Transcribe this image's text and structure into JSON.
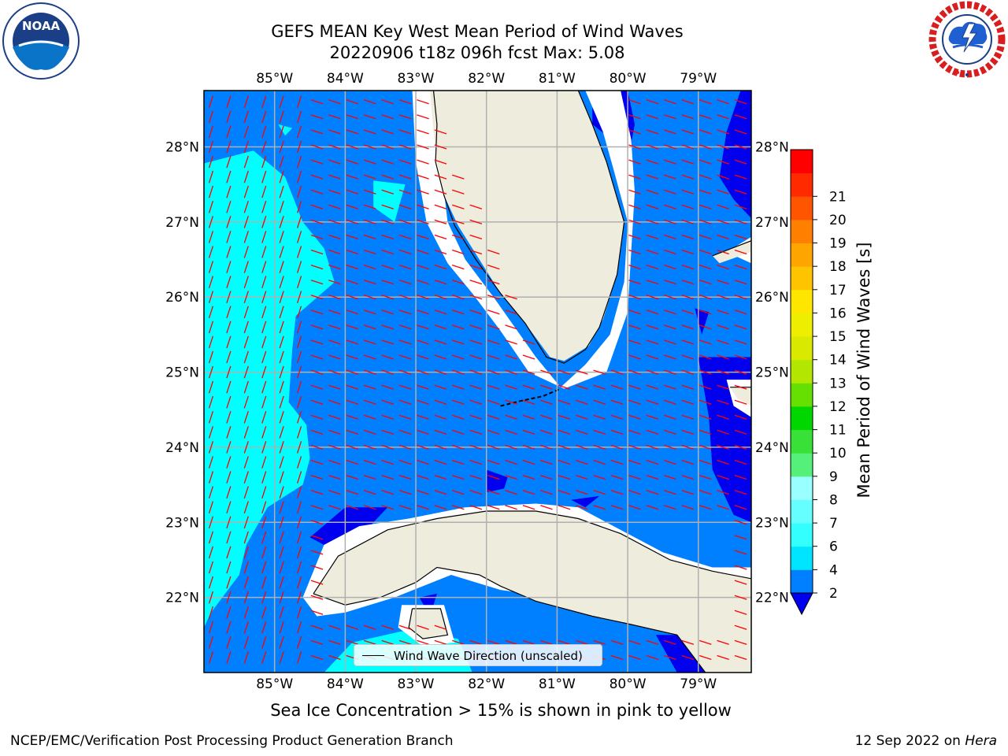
{
  "header": {
    "title_line1": "GEFS MEAN Key West Mean Period of Wind Waves",
    "title_line2": "20220906 t18z 096h fcst   Max: 5.08"
  },
  "logos": {
    "left": {
      "name": "NOAA",
      "text": "NOAA",
      "ring_text": "NATIONAL OCEANIC AND ATMOSPHERIC ADMINISTRATION · U.S. DEPARTMENT OF COMMERCE"
    },
    "right": {
      "name": "National Weather Service",
      "ring_text": "NATIONAL WEATHER SERVICE"
    }
  },
  "chart_data": {
    "type": "heatmap",
    "title": "GEFS MEAN Key West Mean Period of Wind Waves",
    "subtitle": "20220906 t18z 096h fcst   Max: 5.08",
    "map_extent": {
      "lon": [
        -86.0,
        -78.25
      ],
      "lat": [
        21.0,
        28.75
      ]
    },
    "x_ticks": [
      "85°W",
      "84°W",
      "83°W",
      "82°W",
      "81°W",
      "80°W",
      "79°W"
    ],
    "x_tick_values": [
      -85,
      -84,
      -83,
      -82,
      -81,
      -80,
      -79
    ],
    "y_ticks": [
      "22°N",
      "23°N",
      "24°N",
      "25°N",
      "26°N",
      "27°N",
      "28°N"
    ],
    "y_tick_values": [
      22,
      23,
      24,
      25,
      26,
      27,
      28
    ],
    "grid": true,
    "colorbar": {
      "label": "Mean Period of Wind Waves [s]",
      "tick_labels": [
        "2",
        "4",
        "6",
        "7",
        "8",
        "9",
        "10",
        "11",
        "12",
        "13",
        "14",
        "15",
        "16",
        "17",
        "18",
        "19",
        "20",
        "21"
      ],
      "levels": [
        2,
        4,
        6,
        7,
        8,
        9,
        10,
        11,
        12,
        13,
        14,
        15,
        16,
        17,
        18,
        19,
        20,
        21
      ],
      "colors": [
        "#0080ff",
        "#00e5ff",
        "#33ffff",
        "#66ffff",
        "#99ffff",
        "#55f07a",
        "#38e038",
        "#00d600",
        "#66e000",
        "#b3e600",
        "#d9ea00",
        "#eeee00",
        "#ffe600",
        "#ffc400",
        "#ffa500",
        "#ff8000",
        "#ff5500",
        "#ff2a00",
        "#ff0000"
      ],
      "under_color": "#0000ee"
    },
    "field_colors": {
      "below_2": "#0000ee",
      "period_2_4": "#0080ff",
      "period_4_6": "#00ffff",
      "land": "#eeecdc",
      "no_data": "#ffffff"
    },
    "max_value": 5.08,
    "legend": {
      "label": "Wind Wave Direction (unscaled)",
      "placement": "bottom-center"
    },
    "wind_wave_direction": {
      "east_of_84_5W": "toward west-northwest",
      "west_of_84_5W": "toward north-northwest"
    },
    "note": "Sea Ice Concentration > 15% is shown in pink to yellow",
    "accent_colors": {
      "arrows": "#ff0000",
      "gridlines": "#b0b0b0",
      "coastline": "#000000"
    }
  },
  "footer": {
    "left": "NCEP/EMC/Verification Post Processing Product Generation Branch",
    "date": "12 Sep 2022 on",
    "host": "Hera"
  }
}
